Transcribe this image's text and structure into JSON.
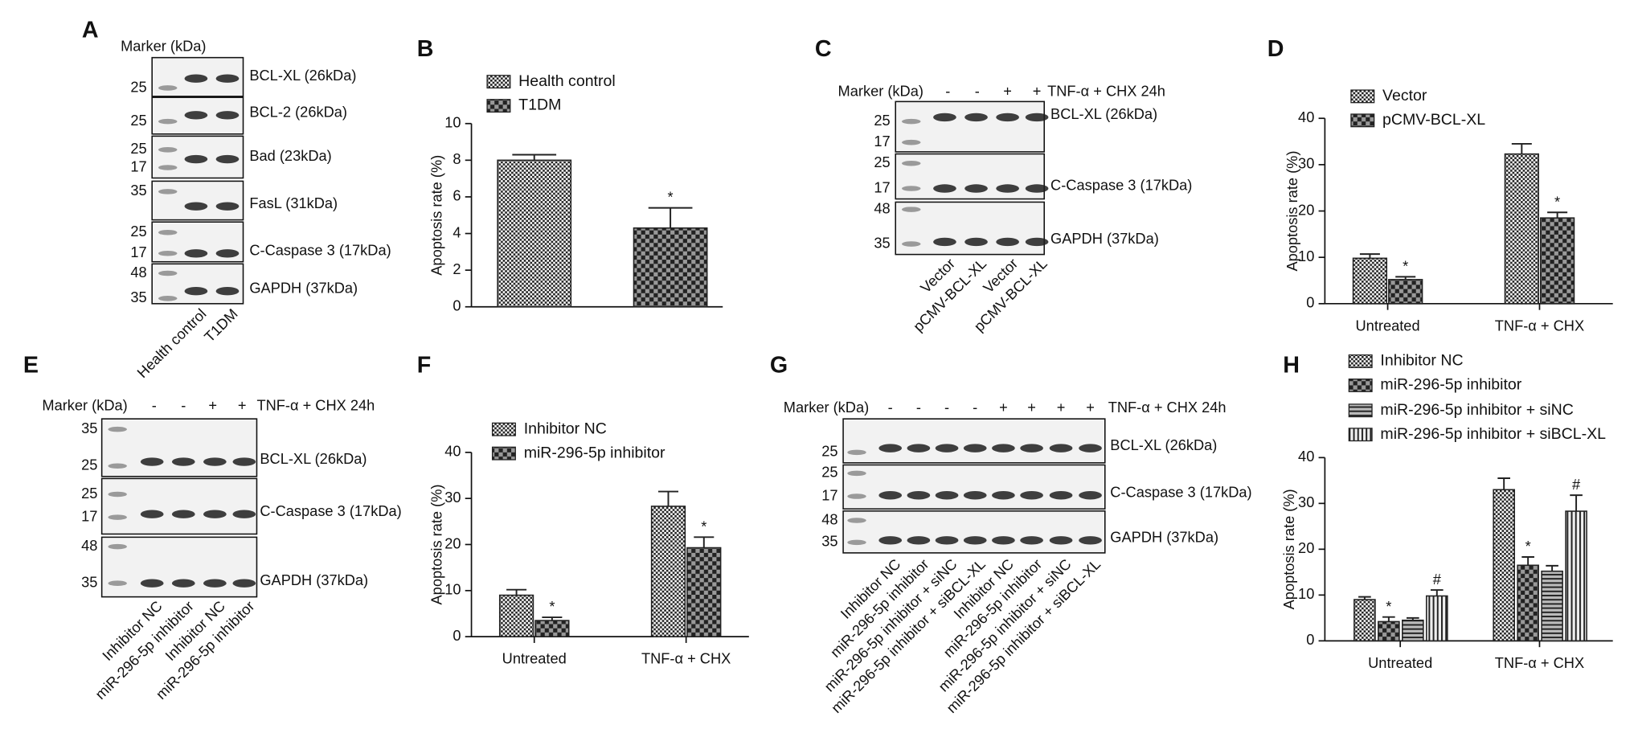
{
  "chart_data": [
    {
      "type": "bar",
      "panel": "B",
      "y_label": "Apoptosis rate (%)",
      "categories": [
        null
      ],
      "series": [
        {
          "name": "Health control",
          "pattern": "fine-check",
          "color": "#222222",
          "values": [
            8.0
          ],
          "errors": [
            0.3
          ]
        },
        {
          "name": "T1DM",
          "pattern": "check",
          "color": "#222222",
          "values": [
            4.3
          ],
          "errors": [
            1.1
          ],
          "annotations": [
            "*"
          ]
        }
      ],
      "ylim": [
        0,
        10
      ],
      "yticks": [
        0,
        2,
        4,
        6,
        8,
        10
      ]
    },
    {
      "type": "bar",
      "panel": "D",
      "y_label": "Apoptosis rate (%)",
      "categories": [
        "Untreated",
        "TNF-α + CHX"
      ],
      "series": [
        {
          "name": "Vector",
          "pattern": "fine-check",
          "color": "#222222",
          "values": [
            9.8,
            32.3
          ],
          "errors": [
            0.9,
            2.2
          ]
        },
        {
          "name": "pCMV-BCL-XL",
          "pattern": "check",
          "color": "#222222",
          "values": [
            5.2,
            18.5
          ],
          "errors": [
            0.6,
            1.2
          ],
          "annotations": [
            "*",
            "*"
          ]
        }
      ],
      "ylim": [
        0,
        40
      ],
      "yticks": [
        0,
        10,
        20,
        30,
        40
      ]
    },
    {
      "type": "bar",
      "panel": "F",
      "y_label": "Apoptosis rate (%)",
      "categories": [
        "Untreated",
        "TNF-α + CHX"
      ],
      "series": [
        {
          "name": "Inhibitor NC",
          "pattern": "fine-check",
          "color": "#222222",
          "values": [
            9.0,
            28.3
          ],
          "errors": [
            1.2,
            3.2
          ]
        },
        {
          "name": "miR-296-5p inhibitor",
          "pattern": "check",
          "color": "#222222",
          "values": [
            3.5,
            19.3
          ],
          "errors": [
            0.7,
            2.3
          ],
          "annotations": [
            "*",
            "*"
          ]
        }
      ],
      "ylim": [
        0,
        40
      ],
      "yticks": [
        0,
        10,
        20,
        30,
        40
      ]
    },
    {
      "type": "bar",
      "panel": "H",
      "y_label": "Apoptosis rate (%)",
      "categories": [
        "Untreated",
        "TNF-α + CHX"
      ],
      "series": [
        {
          "name": "Inhibitor NC",
          "pattern": "fine-check",
          "color": "#222222",
          "values": [
            9.0,
            33.0
          ],
          "errors": [
            0.6,
            2.5
          ]
        },
        {
          "name": "miR-296-5p inhibitor",
          "pattern": "check",
          "color": "#222222",
          "values": [
            4.2,
            16.5
          ],
          "errors": [
            1.0,
            1.8
          ],
          "annotations": [
            "*",
            "*"
          ]
        },
        {
          "name": "miR-296-5p inhibitor + siNC",
          "pattern": "horizontal",
          "color": "#222222",
          "values": [
            4.5,
            15.2
          ],
          "errors": [
            0.5,
            1.2
          ]
        },
        {
          "name": "miR-296-5p inhibitor + siBCL-XL",
          "pattern": "vertical",
          "color": "#222222",
          "values": [
            9.8,
            28.3
          ],
          "errors": [
            1.3,
            3.5
          ],
          "annotations": [
            "#",
            "#"
          ]
        }
      ],
      "ylim": [
        0,
        40
      ],
      "yticks": [
        0,
        10,
        20,
        30,
        40
      ]
    }
  ],
  "blots": [
    {
      "panel": "A",
      "marker_title": "Marker (kDa)",
      "rows": [
        {
          "label": "BCL-XL (26kDa)",
          "markers": [
            "25"
          ]
        },
        {
          "label": "BCL-2 (26kDa)",
          "markers": [
            "25"
          ]
        },
        {
          "label": "Bad (23kDa)",
          "markers": [
            "25",
            "17"
          ]
        },
        {
          "label": "FasL (31kDa)",
          "markers": [
            "35"
          ]
        },
        {
          "label": "C-Caspase 3 (17kDa)",
          "markers": [
            "25",
            "17"
          ]
        },
        {
          "label": "GAPDH (37kDa)",
          "markers": [
            "48",
            "35"
          ]
        }
      ],
      "lanes": [
        "Health control",
        "T1DM"
      ]
    },
    {
      "panel": "C",
      "marker_title": "Marker (kDa)",
      "treatment": "TNF-α + CHX 24h",
      "signs": [
        "-",
        "-",
        "+",
        "+"
      ],
      "rows": [
        {
          "label": "BCL-XL (26kDa)",
          "markers": [
            "25",
            "17"
          ]
        },
        {
          "label": "C-Caspase 3  (17kDa)",
          "markers": [
            "25",
            "17"
          ]
        },
        {
          "label": "GAPDH (37kDa)",
          "markers": [
            "48",
            "35"
          ]
        }
      ],
      "lanes": [
        "Vector",
        "pCMV-BCL-XL",
        "Vector",
        "pCMV-BCL-XL"
      ]
    },
    {
      "panel": "E",
      "marker_title": "Marker (kDa)",
      "treatment": "TNF-α + CHX 24h",
      "signs": [
        "-",
        "-",
        "+",
        "+"
      ],
      "rows": [
        {
          "label": "BCL-XL (26kDa)",
          "markers": [
            "35",
            "25"
          ]
        },
        {
          "label": "C-Caspase 3  (17kDa)",
          "markers": [
            "25",
            "17"
          ]
        },
        {
          "label": "GAPDH (37kDa)",
          "markers": [
            "48",
            "35"
          ]
        }
      ],
      "lanes": [
        "Inhibitor NC",
        "miR-296-5p inhibitor",
        "Inhibitor NC",
        "miR-296-5p inhibitor"
      ]
    },
    {
      "panel": "G",
      "marker_title": "Marker (kDa)",
      "treatment": "TNF-α + CHX 24h",
      "signs": [
        "-",
        "-",
        "-",
        "-",
        "+",
        "+",
        "+",
        "+"
      ],
      "rows": [
        {
          "label": "BCL-XL (26kDa)",
          "markers": [
            "25"
          ]
        },
        {
          "label": "C-Caspase 3  (17kDa)",
          "markers": [
            "25",
            "17"
          ]
        },
        {
          "label": "GAPDH (37kDa)",
          "markers": [
            "48",
            "35"
          ]
        }
      ],
      "lanes": [
        "Inhibitor NC",
        "miR-296-5p inhibitor",
        "miR-296-5p inhibitor + siNC",
        "miR-296-5p inhibitor + siBCL-XL",
        "Inhibitor NC",
        "miR-296-5p inhibitor",
        "miR-296-5p inhibitor + siNC",
        "miR-296-5p inhibitor + siBCL-XL"
      ]
    }
  ]
}
